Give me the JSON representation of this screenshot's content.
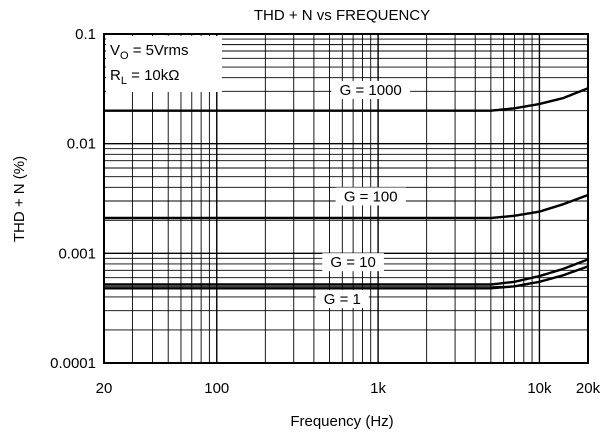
{
  "chart_data": {
    "type": "line",
    "title": "THD + N vs FREQUENCY",
    "xlabel": "Frequency (Hz)",
    "ylabel": "THD + N (%)",
    "x_scale": "log",
    "y_scale": "log",
    "xlim": [
      20,
      20000
    ],
    "ylim": [
      0.0001,
      0.1
    ],
    "grid": true,
    "x_tick_labels": [
      "20",
      "100",
      "1k",
      "10k",
      "20k"
    ],
    "y_tick_labels": [
      "0.1",
      "0.01",
      "0.001",
      "0.0001"
    ],
    "annotations": {
      "vo_prefix": "V",
      "vo_sub": "O",
      "vo_suffix": " = 5Vrms",
      "rl_prefix": "R",
      "rl_sub": "L",
      "rl_suffix": " = 10kΩ"
    },
    "series": [
      {
        "name": "G = 1000",
        "x": [
          20,
          100,
          1000,
          5000,
          7000,
          10000,
          14000,
          20000
        ],
        "y": [
          0.02,
          0.02,
          0.02,
          0.02,
          0.021,
          0.023,
          0.026,
          0.032
        ]
      },
      {
        "name": "G = 100",
        "x": [
          20,
          100,
          1000,
          5000,
          7000,
          10000,
          14000,
          20000
        ],
        "y": [
          0.0021,
          0.0021,
          0.0021,
          0.0021,
          0.0022,
          0.0024,
          0.0028,
          0.0034
        ]
      },
      {
        "name": "G = 10",
        "x": [
          20,
          100,
          1000,
          5000,
          7000,
          10000,
          14000,
          20000
        ],
        "y": [
          0.00052,
          0.00052,
          0.00052,
          0.00052,
          0.00055,
          0.00062,
          0.00072,
          0.00088
        ]
      },
      {
        "name": "G = 1",
        "x": [
          20,
          100,
          1000,
          5000,
          7000,
          10000,
          14000,
          20000
        ],
        "y": [
          0.00048,
          0.00048,
          0.00048,
          0.00048,
          0.0005,
          0.00055,
          0.00063,
          0.00076
        ]
      }
    ],
    "series_label_positions": [
      {
        "label": "G = 1000",
        "x": 900,
        "y": 0.029
      },
      {
        "label": "G = 100",
        "x": 900,
        "y": 0.0031
      },
      {
        "label": "G = 10",
        "x": 700,
        "y": 0.00078
      },
      {
        "label": "G = 1",
        "x": 600,
        "y": 0.00036
      }
    ],
    "colors": {
      "line": "#000000",
      "grid": "#000000",
      "background": "#ffffff"
    }
  }
}
